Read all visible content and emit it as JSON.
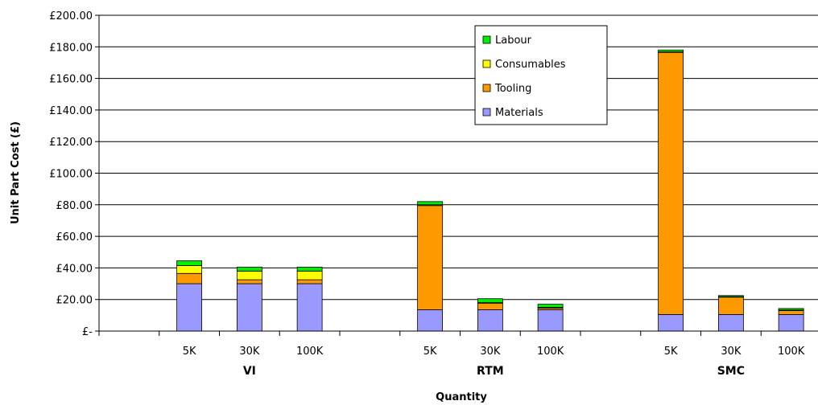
{
  "chart_data": {
    "type": "bar",
    "stacked": true,
    "xlabel": "Quantity",
    "ylabel": "Unit Part Cost (£)",
    "ylim": [
      0,
      200
    ],
    "yticks": [
      {
        "value": 0,
        "label": "£-"
      },
      {
        "value": 20,
        "label": "£20.00"
      },
      {
        "value": 40,
        "label": "£40.00"
      },
      {
        "value": 60,
        "label": "£60.00"
      },
      {
        "value": 80,
        "label": "£80.00"
      },
      {
        "value": 100,
        "label": "£100.00"
      },
      {
        "value": 120,
        "label": "£120.00"
      },
      {
        "value": 140,
        "label": "£140.00"
      },
      {
        "value": 160,
        "label": "£160.00"
      },
      {
        "value": 180,
        "label": "£180.00"
      },
      {
        "value": 200,
        "label": "£200.00"
      }
    ],
    "grid": true,
    "legend_position": "top-center-right",
    "groups": [
      "VI",
      "RTM",
      "SMC"
    ],
    "categories": [
      "",
      "5K",
      "30K",
      "100K",
      "",
      "5K",
      "30K",
      "100K",
      "",
      "5K",
      "30K",
      "100K"
    ],
    "category_groups": [
      "VI",
      "VI",
      "VI",
      "VI",
      "RTM",
      "RTM",
      "RTM",
      "RTM",
      "SMC",
      "SMC",
      "SMC",
      "SMC"
    ],
    "series": [
      {
        "name": "Materials",
        "color": "#9999ff",
        "values": [
          0,
          30,
          30,
          30,
          0,
          13.5,
          13.5,
          13.5,
          0,
          10.5,
          10.5,
          10.5
        ]
      },
      {
        "name": "Tooling",
        "color": "#ff9900",
        "values": [
          0,
          6.5,
          2.5,
          2.5,
          0,
          66,
          4,
          1,
          0,
          166,
          11,
          2.5
        ]
      },
      {
        "name": "Consumables",
        "color": "#ffff00",
        "values": [
          0,
          5,
          5.5,
          5.5,
          0,
          0.5,
          0.5,
          0.5,
          0,
          0.3,
          0.3,
          0.3
        ]
      },
      {
        "name": "Labour",
        "color": "#00ee00",
        "values": [
          0,
          3,
          2.5,
          2.5,
          0,
          2,
          2.5,
          2,
          0,
          1.2,
          0.7,
          1
        ]
      }
    ],
    "legend_order": [
      "Labour",
      "Consumables",
      "Tooling",
      "Materials"
    ]
  }
}
